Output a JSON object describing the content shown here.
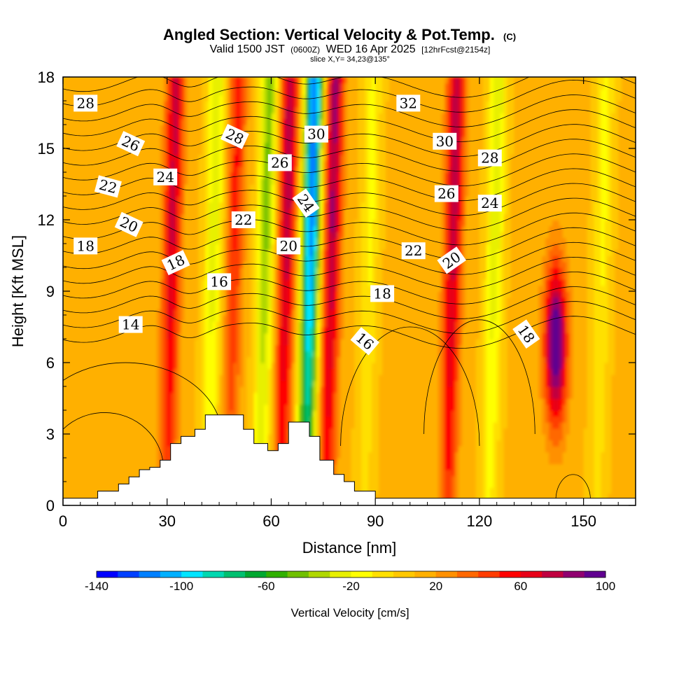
{
  "chart_data": {
    "type": "heatmap",
    "title": "Angled Section: Vertical Velocity & Pot.Temp.",
    "title_unit": "(C)",
    "subtitle_main": "Valid 1500 JST",
    "subtitle_z": "(0600Z)",
    "subtitle_date": "WED 16 Apr 2025",
    "subtitle_fcst": "[12hrFcst@2154z]",
    "slice_label": "slice X,Y= 34,23@135°",
    "xlabel": "Distance [nm]",
    "ylabel": "Height [Kft MSL]",
    "xlim": [
      0,
      165
    ],
    "ylim": [
      0,
      18
    ],
    "x_ticks": [
      0,
      30,
      60,
      90,
      120,
      150
    ],
    "y_ticks": [
      0,
      3,
      6,
      9,
      12,
      15,
      18
    ],
    "colorbar": {
      "label": "Vertical Velocity [cm/s]",
      "min": -140,
      "max": 100,
      "step": 10,
      "tick_labels": [
        "-140",
        "-100",
        "-60",
        "-20",
        "20",
        "60",
        "100"
      ],
      "colors": [
        "#0000ff",
        "#0040ff",
        "#0080ff",
        "#00b0ff",
        "#00e5ff",
        "#00d8b0",
        "#00c070",
        "#00a830",
        "#30b000",
        "#70c000",
        "#b0d800",
        "#e8f000",
        "#ffff00",
        "#ffe000",
        "#ffc800",
        "#ffb000",
        "#ff9000",
        "#ff6800",
        "#ff3c00",
        "#ff0000",
        "#e80018",
        "#c00040",
        "#900070",
        "#600090"
      ]
    },
    "velocity_bands": [
      {
        "x": 31,
        "peak": 60
      },
      {
        "x": 43,
        "peak": -40
      },
      {
        "x": 49,
        "peak": 40
      },
      {
        "x": 58,
        "peak": -55
      },
      {
        "x": 64,
        "peak": 65
      },
      {
        "x": 71,
        "peak": -130
      },
      {
        "x": 77,
        "peak": 70
      },
      {
        "x": 88,
        "peak": -25
      },
      {
        "x": 112,
        "peak": 65
      },
      {
        "x": 124,
        "peak": -40
      },
      {
        "x": 142,
        "peak": 95
      },
      {
        "x": 155,
        "peak": -25
      }
    ],
    "terrain": [
      [
        0,
        0.3
      ],
      [
        10,
        0.3
      ],
      [
        10,
        0.6
      ],
      [
        16,
        0.6
      ],
      [
        16,
        0.9
      ],
      [
        19,
        0.9
      ],
      [
        19,
        1.2
      ],
      [
        22,
        1.2
      ],
      [
        22,
        1.5
      ],
      [
        25,
        1.5
      ],
      [
        25,
        1.6
      ],
      [
        28,
        1.6
      ],
      [
        28,
        1.9
      ],
      [
        31,
        1.9
      ],
      [
        31,
        2.6
      ],
      [
        34,
        2.6
      ],
      [
        34,
        2.9
      ],
      [
        38,
        2.9
      ],
      [
        38,
        3.2
      ],
      [
        41,
        3.2
      ],
      [
        41,
        3.8
      ],
      [
        52,
        3.8
      ],
      [
        52,
        3.2
      ],
      [
        55,
        3.2
      ],
      [
        55,
        2.6
      ],
      [
        59,
        2.6
      ],
      [
        59,
        2.3
      ],
      [
        62,
        2.3
      ],
      [
        62,
        2.6
      ],
      [
        65,
        2.6
      ],
      [
        65,
        3.5
      ],
      [
        71,
        3.5
      ],
      [
        71,
        2.9
      ],
      [
        74,
        2.9
      ],
      [
        74,
        1.9
      ],
      [
        78,
        1.9
      ],
      [
        78,
        1.3
      ],
      [
        81,
        1.3
      ],
      [
        81,
        1.0
      ],
      [
        84,
        1.0
      ],
      [
        84,
        0.6
      ],
      [
        90,
        0.6
      ],
      [
        90,
        0.3
      ],
      [
        165,
        0.3
      ]
    ],
    "contour_labels": [
      {
        "text": "28",
        "x": 6.5,
        "y": 16.9,
        "angle": 0
      },
      {
        "text": "26",
        "x": 19.5,
        "y": 15.2,
        "angle": 25
      },
      {
        "text": "22",
        "x": 13,
        "y": 13.4,
        "angle": 15
      },
      {
        "text": "24",
        "x": 29.5,
        "y": 13.8,
        "angle": 0
      },
      {
        "text": "20",
        "x": 19,
        "y": 11.8,
        "angle": 25
      },
      {
        "text": "18",
        "x": 6.5,
        "y": 10.9,
        "angle": 0
      },
      {
        "text": "18",
        "x": 32.5,
        "y": 10.2,
        "angle": -25
      },
      {
        "text": "16",
        "x": 45,
        "y": 9.4,
        "angle": 0
      },
      {
        "text": "14",
        "x": 19.5,
        "y": 7.6,
        "angle": 0
      },
      {
        "text": "28",
        "x": 49.5,
        "y": 15.5,
        "angle": 25
      },
      {
        "text": "26",
        "x": 62.5,
        "y": 14.4,
        "angle": 0
      },
      {
        "text": "22",
        "x": 52,
        "y": 12.0,
        "angle": 0
      },
      {
        "text": "20",
        "x": 65,
        "y": 10.9,
        "angle": 0
      },
      {
        "text": "30",
        "x": 73,
        "y": 15.6,
        "angle": 0
      },
      {
        "text": "24",
        "x": 70,
        "y": 12.7,
        "angle": 55
      },
      {
        "text": "32",
        "x": 99.5,
        "y": 16.9,
        "angle": 0
      },
      {
        "text": "30",
        "x": 110,
        "y": 15.3,
        "angle": 0
      },
      {
        "text": "28",
        "x": 123,
        "y": 14.6,
        "angle": 0
      },
      {
        "text": "26",
        "x": 110.5,
        "y": 13.1,
        "angle": 0
      },
      {
        "text": "24",
        "x": 123,
        "y": 12.7,
        "angle": 0
      },
      {
        "text": "22",
        "x": 101,
        "y": 10.7,
        "angle": 0
      },
      {
        "text": "20",
        "x": 112,
        "y": 10.3,
        "angle": -35
      },
      {
        "text": "18",
        "x": 92,
        "y": 8.9,
        "angle": 0
      },
      {
        "text": "16",
        "x": 87,
        "y": 6.9,
        "angle": 40
      },
      {
        "text": "18",
        "x": 133.5,
        "y": 7.2,
        "angle": 55
      }
    ]
  }
}
